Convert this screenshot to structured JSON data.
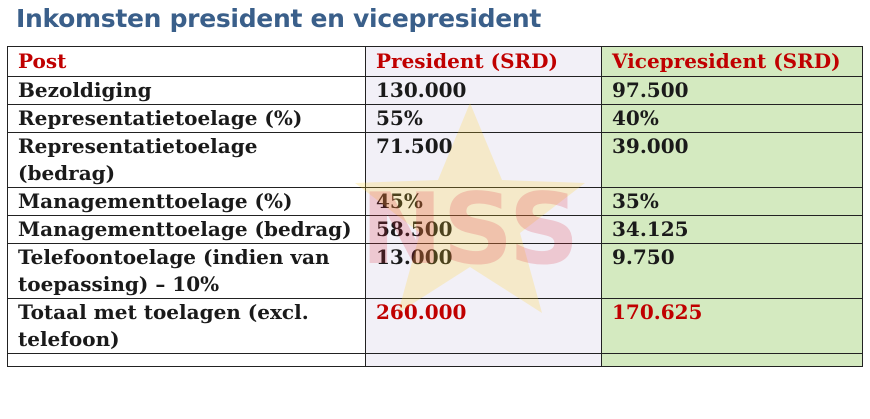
{
  "title": "Inkomsten president en vicepresident",
  "colors": {
    "title": "#3a5f8a",
    "accent_red": "#c00000",
    "vice_bg": "#c4e2a8",
    "pres_bg": "#e8e4f0"
  },
  "table": {
    "headers": [
      "Post",
      "President (SRD)",
      "Vicepresident (SRD)"
    ],
    "rows": [
      {
        "post": "Bezoldiging",
        "president": "130.000",
        "vice": "97.500"
      },
      {
        "post": "Representatietoelage (%)",
        "president": "55%",
        "vice": "40%"
      },
      {
        "post": "Representatietoelage (bedrag)",
        "president": "71.500",
        "vice": "39.000"
      },
      {
        "post": "Managementtoelage (%)",
        "president": "45%",
        "vice": "35%"
      },
      {
        "post": "Managementtoelage (bedrag)",
        "president": "58.500",
        "vice": "34.125"
      },
      {
        "post": "Telefoontoelage (indien van toepassing) – 10%",
        "president": "13.000",
        "vice": "9.750"
      },
      {
        "post": "Totaal met toelagen (excl. telefoon)",
        "president": "260.000",
        "vice": "170.625"
      }
    ]
  }
}
